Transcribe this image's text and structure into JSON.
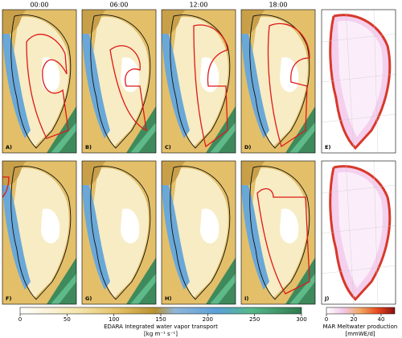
{
  "column_titles": [
    "00:00",
    "06:00",
    "12:00",
    "18:00"
  ],
  "panel_labels": [
    "A)",
    "B)",
    "C)",
    "D)",
    "E)",
    "F)",
    "G)",
    "H)",
    "I)",
    "J)"
  ],
  "colorbar_ivt": {
    "label": "EDARA Integrated water vapor transport",
    "units": "[kg m⁻¹ s⁻¹]",
    "lim": [
      0,
      300
    ],
    "ticks": [
      0,
      50,
      100,
      150,
      200,
      250,
      300
    ]
  },
  "colorbar_melt": {
    "label": "MAR Meltwater production",
    "units": "[mmWE/d]",
    "lim": [
      0,
      50
    ],
    "ticks": [
      0,
      20,
      40
    ]
  }
}
